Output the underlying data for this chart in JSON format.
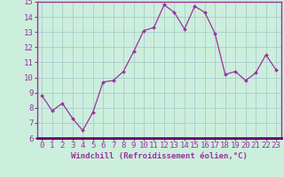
{
  "x": [
    0,
    1,
    2,
    3,
    4,
    5,
    6,
    7,
    8,
    9,
    10,
    11,
    12,
    13,
    14,
    15,
    16,
    17,
    18,
    19,
    20,
    21,
    22,
    23
  ],
  "y": [
    8.8,
    7.8,
    8.3,
    7.3,
    6.5,
    7.7,
    9.7,
    9.8,
    10.4,
    11.7,
    13.1,
    13.3,
    14.8,
    14.3,
    13.2,
    14.7,
    14.3,
    12.9,
    10.2,
    10.4,
    9.8,
    10.3,
    11.5,
    10.5
  ],
  "line_color": "#993399",
  "marker": "D",
  "marker_size": 2.0,
  "linewidth": 0.9,
  "background_color": "#cceedd",
  "grid_color": "#aacccc",
  "xlabel": "Windchill (Refroidissement éolien,°C)",
  "xlabel_fontsize": 6.5,
  "xtick_labels": [
    "0",
    "1",
    "2",
    "3",
    "4",
    "5",
    "6",
    "7",
    "8",
    "9",
    "10",
    "11",
    "12",
    "13",
    "14",
    "15",
    "16",
    "17",
    "18",
    "19",
    "20",
    "21",
    "22",
    "23"
  ],
  "ylim": [
    6,
    15
  ],
  "yticks": [
    6,
    7,
    8,
    9,
    10,
    11,
    12,
    13,
    14,
    15
  ],
  "tick_fontsize": 6.5,
  "axis_label_color": "#993399",
  "tick_color": "#993399",
  "spine_color": "#993399"
}
